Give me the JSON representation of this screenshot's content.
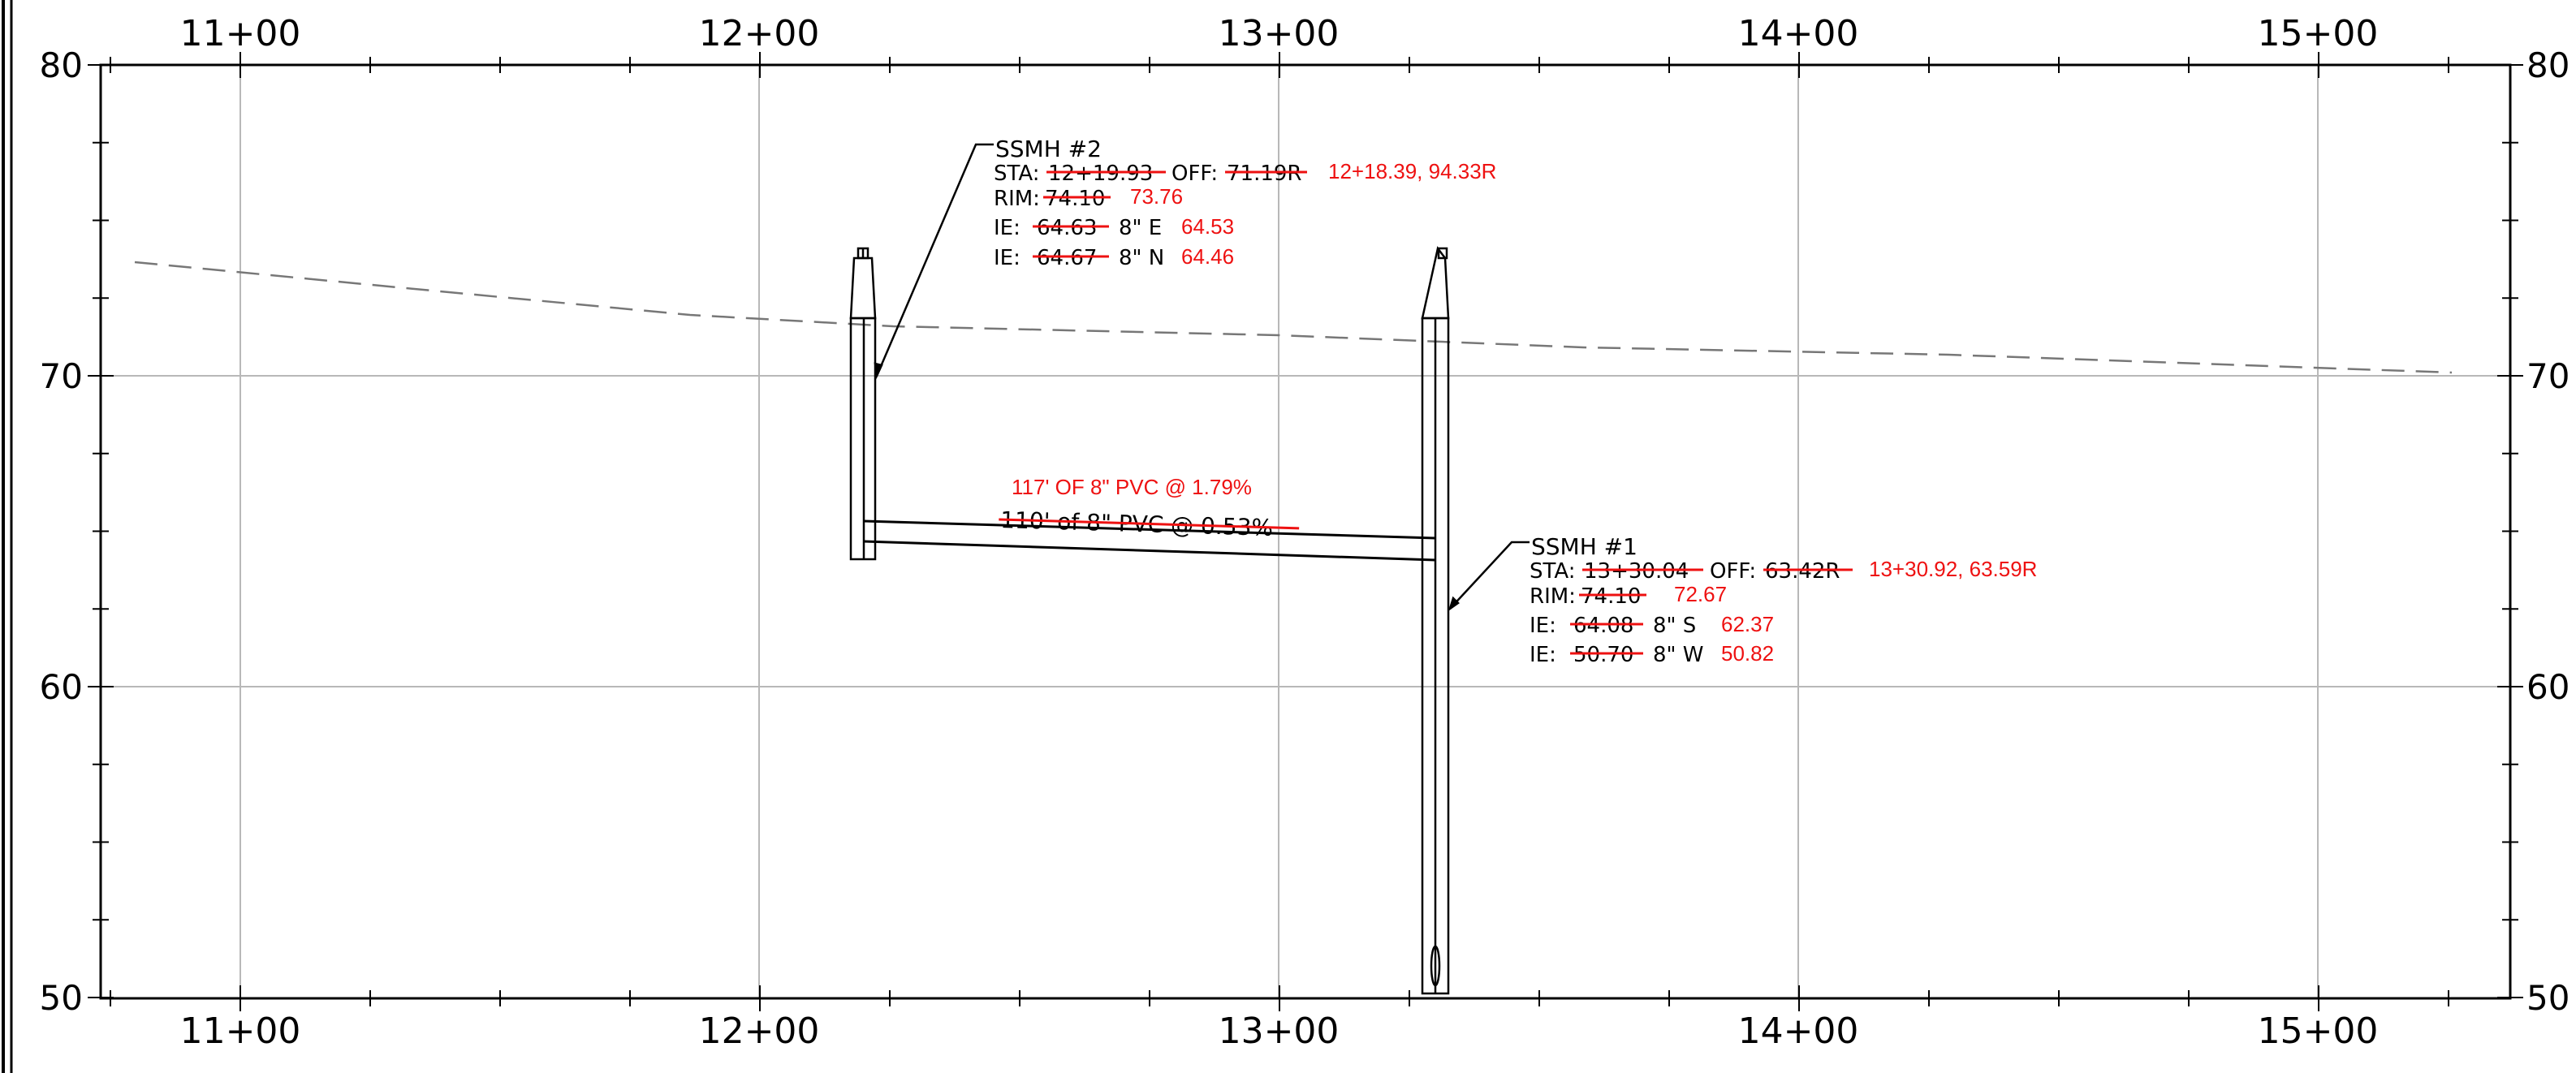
{
  "profile": {
    "stations": [
      "11+00",
      "12+00",
      "13+00",
      "14+00",
      "15+00"
    ],
    "elevations": [
      "80",
      "70",
      "60",
      "50"
    ],
    "colors": {
      "line": "#000000",
      "grid": "#b8b8b8",
      "revision": "#ee1111"
    }
  },
  "ssmh2": {
    "title": "SSMH #2",
    "sta_label": "STA:",
    "sta_old": "12+19.93",
    "off_label": "OFF:",
    "off_old": "71.19R",
    "sta_off_new": "12+18.39, 94.33R",
    "rim_label": "RIM:",
    "rim_old": "74.10",
    "rim_new": "73.76",
    "ie1_label": "IE:",
    "ie1_old": "64.63",
    "ie1_size": "8\" E",
    "ie1_new": "64.53",
    "ie2_label": "IE:",
    "ie2_old": "64.67",
    "ie2_size": "8\" N",
    "ie2_new": "64.46"
  },
  "ssmh1": {
    "title": "SSMH #1",
    "sta_label": "STA:",
    "sta_old": "13+30.04",
    "off_label": "OFF:",
    "off_old": "63.42R",
    "sta_off_new": "13+30.92, 63.59R",
    "rim_label": "RIM:",
    "rim_old": "74.10",
    "rim_new": "72.67",
    "ie1_label": "IE:",
    "ie1_old": "64.08",
    "ie1_size": "8\" S",
    "ie1_new": "62.37",
    "ie2_label": "IE:",
    "ie2_old": "50.70",
    "ie2_size": "8\" W",
    "ie2_new": "50.82"
  },
  "pipe": {
    "new_label": "117' OF 8\" PVC @ 1.79%",
    "old_label": "110' of 8\" PVC @ 0.53%"
  }
}
